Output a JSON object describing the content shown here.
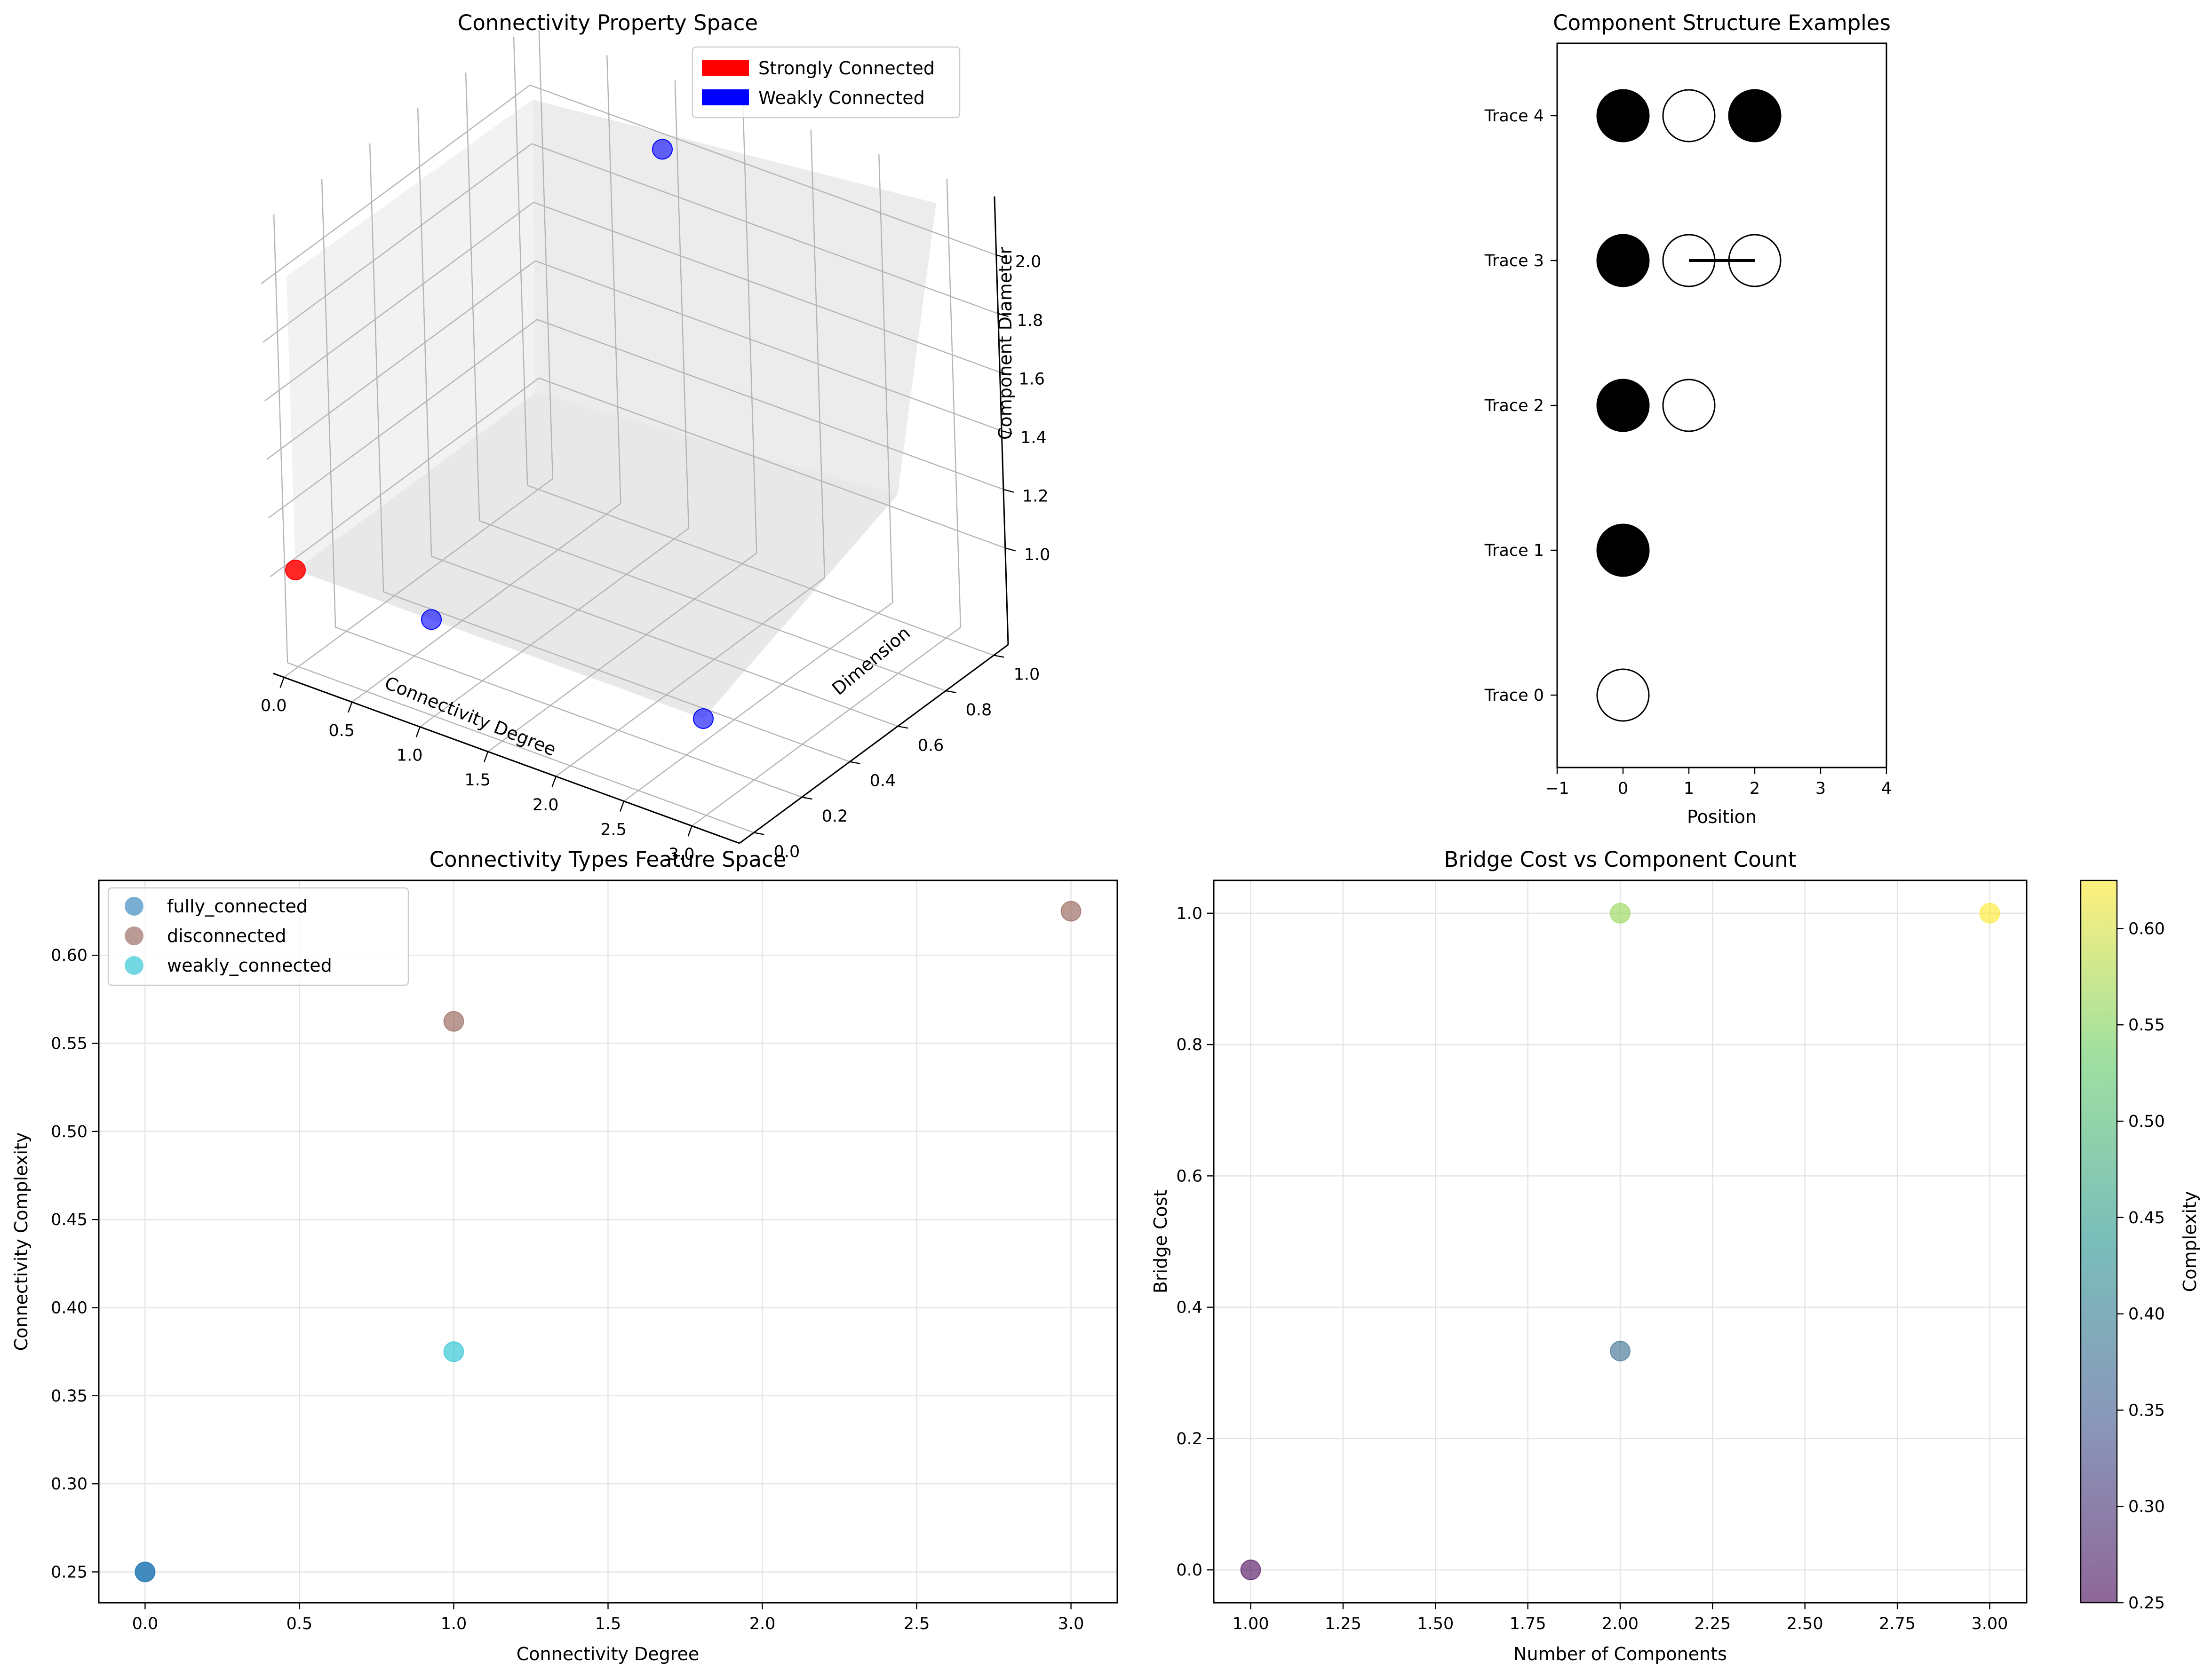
{
  "colors": {
    "strong": "#ff0000",
    "weak": "#0000ff",
    "fully_connected": "#1f77b4",
    "disconnected": "#8c564b",
    "weakly_connected": "#17becf",
    "viridis": [
      "#440154",
      "#3b528b",
      "#21918c",
      "#5ec962",
      "#fde725"
    ]
  },
  "panel_3d": {
    "title": "Connectivity Property Space",
    "xlabel": "Connectivity Degree",
    "ylabel": "Dimension",
    "zlabel": "Component Diameter",
    "xticks": [
      "0.0",
      "0.5",
      "1.0",
      "1.5",
      "2.0",
      "2.5",
      "3.0"
    ],
    "yticks": [
      "0.0",
      "0.2",
      "0.4",
      "0.6",
      "0.8",
      "1.0"
    ],
    "zticks": [
      "1.0",
      "1.2",
      "1.4",
      "1.6",
      "1.8",
      "2.0"
    ],
    "legend": [
      "Strongly Connected",
      "Weakly Connected"
    ]
  },
  "panel_structure": {
    "title": "Component Structure Examples",
    "xlabel": "Position",
    "xticks": [
      "−1",
      "0",
      "1",
      "2",
      "3",
      "4"
    ],
    "traces": [
      "Trace 0",
      "Trace 1",
      "Trace 2",
      "Trace 3",
      "Trace 4"
    ]
  },
  "panel_types": {
    "title": "Connectivity Types Feature Space",
    "xlabel": "Connectivity Degree",
    "ylabel": "Connectivity Complexity",
    "xticks": [
      "0.0",
      "0.5",
      "1.0",
      "1.5",
      "2.0",
      "2.5",
      "3.0"
    ],
    "yticks": [
      "0.25",
      "0.30",
      "0.35",
      "0.40",
      "0.45",
      "0.50",
      "0.55",
      "0.60"
    ],
    "legend": [
      "fully_connected",
      "disconnected",
      "weakly_connected"
    ]
  },
  "panel_bridge": {
    "title": "Bridge Cost vs Component Count",
    "xlabel": "Number of Components",
    "ylabel": "Bridge Cost",
    "colorbar_label": "Complexity",
    "xticks": [
      "1.00",
      "1.25",
      "1.50",
      "1.75",
      "2.00",
      "2.25",
      "2.50",
      "2.75",
      "3.00"
    ],
    "yticks": [
      "0.0",
      "0.2",
      "0.4",
      "0.6",
      "0.8",
      "1.0"
    ],
    "cbticks": [
      "0.25",
      "0.30",
      "0.35",
      "0.40",
      "0.45",
      "0.50",
      "0.55",
      "0.60"
    ]
  },
  "chart_data": [
    {
      "type": "scatter",
      "projection": "3d",
      "title": "Connectivity Property Space",
      "xlabel": "Connectivity Degree",
      "ylabel": "Dimension",
      "zlabel": "Component Diameter",
      "xlim": [
        0,
        3
      ],
      "ylim": [
        0,
        1
      ],
      "zlim": [
        1,
        2
      ],
      "legend_position": "top-right",
      "points": [
        {
          "x": 0,
          "y": 0,
          "z": 1,
          "group": "Strongly Connected"
        },
        {
          "x": 1,
          "y": 0,
          "z": 1,
          "group": "Weakly Connected"
        },
        {
          "x": 3,
          "y": 0,
          "z": 1,
          "group": "Weakly Connected"
        },
        {
          "x": 1,
          "y": 1,
          "z": 2,
          "group": "Weakly Connected"
        }
      ]
    },
    {
      "type": "scatter",
      "title": "Component Structure Examples",
      "xlabel": "Position",
      "xlim": [
        -1,
        4
      ],
      "ylim": [
        -0.5,
        4.5
      ],
      "traces": [
        {
          "label": "Trace 0",
          "y": 0,
          "nodes": [
            {
              "x": 0,
              "filled": false
            }
          ],
          "links": []
        },
        {
          "label": "Trace 1",
          "y": 1,
          "nodes": [
            {
              "x": 0,
              "filled": true
            }
          ],
          "links": []
        },
        {
          "label": "Trace 2",
          "y": 2,
          "nodes": [
            {
              "x": 0,
              "filled": true
            },
            {
              "x": 1,
              "filled": false
            }
          ],
          "links": []
        },
        {
          "label": "Trace 3",
          "y": 3,
          "nodes": [
            {
              "x": 0,
              "filled": true
            },
            {
              "x": 1,
              "filled": false
            },
            {
              "x": 2,
              "filled": false
            }
          ],
          "links": [
            [
              1,
              2
            ]
          ]
        },
        {
          "label": "Trace 4",
          "y": 4,
          "nodes": [
            {
              "x": 0,
              "filled": true
            },
            {
              "x": 1,
              "filled": false
            },
            {
              "x": 2,
              "filled": true
            }
          ],
          "links": []
        }
      ]
    },
    {
      "type": "scatter",
      "title": "Connectivity Types Feature Space",
      "xlabel": "Connectivity Degree",
      "ylabel": "Connectivity Complexity",
      "xlim": [
        -0.15,
        3.15
      ],
      "ylim": [
        0.2325,
        0.6425
      ],
      "grid": true,
      "legend_position": "top-left",
      "series": [
        {
          "name": "fully_connected",
          "points": [
            [
              0,
              0.25
            ],
            [
              0,
              0.25
            ]
          ]
        },
        {
          "name": "disconnected",
          "points": [
            [
              1,
              0.5625
            ],
            [
              3,
              0.625
            ]
          ]
        },
        {
          "name": "weakly_connected",
          "points": [
            [
              1,
              0.375
            ]
          ]
        }
      ]
    },
    {
      "type": "scatter",
      "title": "Bridge Cost vs Component Count",
      "xlabel": "Number of Components",
      "ylabel": "Bridge Cost",
      "xlim": [
        0.9,
        3.1
      ],
      "ylim": [
        -0.05,
        1.05
      ],
      "grid": true,
      "colorbar": {
        "label": "Complexity",
        "range": [
          0.25,
          0.625
        ]
      },
      "points": [
        {
          "x": 1,
          "y": 0,
          "c": 0.25
        },
        {
          "x": 2,
          "y": 0.3333,
          "c": 0.375
        },
        {
          "x": 2,
          "y": 1,
          "c": 0.5625
        },
        {
          "x": 3,
          "y": 1,
          "c": 0.625
        }
      ]
    }
  ]
}
